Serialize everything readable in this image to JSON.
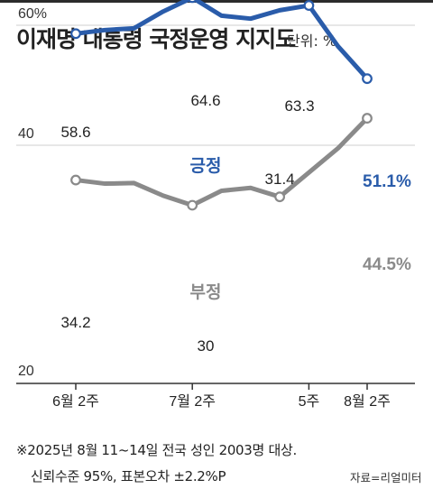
{
  "title": "이재명 대통령 국정운영 지지도",
  "unit": "단위: %",
  "footnote": {
    "line1": "※2025년 8월 11~14일 전국 성인 2003명 대상.",
    "line2": "신뢰수준 95%, 표본오차 ±2.2%P",
    "source": "자료=리얼미터"
  },
  "colors": {
    "positive": "#2a5caa",
    "negative": "#8a8a8a",
    "grid": "#cfcfcf",
    "axis": "#333333"
  },
  "chart_data": {
    "type": "line",
    "x_ticks": [
      "6월 2주",
      "7월 2주",
      "5주",
      "8월 2주"
    ],
    "x_tick_index": [
      0,
      4,
      8,
      10
    ],
    "y_ticks": [
      "60%",
      "40",
      "20"
    ],
    "y_tick_values": [
      60,
      40,
      20
    ],
    "ylim": [
      20,
      70
    ],
    "grid": true,
    "series": [
      {
        "name": "긍정",
        "values": [
          58.6,
          59.2,
          59.5,
          62.3,
          64.6,
          61.6,
          61.1,
          62.5,
          63.3,
          56.5,
          51.1
        ],
        "labels": [
          {
            "index": 0,
            "text": "58.6"
          },
          {
            "index": 4,
            "text": "64.6"
          },
          {
            "index": 8,
            "text": "63.3"
          },
          {
            "index": 10,
            "text": "51.1%"
          }
        ]
      },
      {
        "name": "부정",
        "values": [
          34.2,
          33.6,
          33.7,
          31.6,
          30.0,
          32.4,
          32.9,
          31.4,
          39.5,
          44.5
        ],
        "x_index": [
          0,
          1,
          2,
          3,
          4,
          5,
          6,
          7,
          9,
          10
        ],
        "labels": [
          {
            "index": 0,
            "text": "34.2"
          },
          {
            "index": 4,
            "text": "30"
          },
          {
            "index": 7,
            "text": "31.4"
          },
          {
            "index": 10,
            "text": "44.5%"
          }
        ]
      }
    ]
  }
}
